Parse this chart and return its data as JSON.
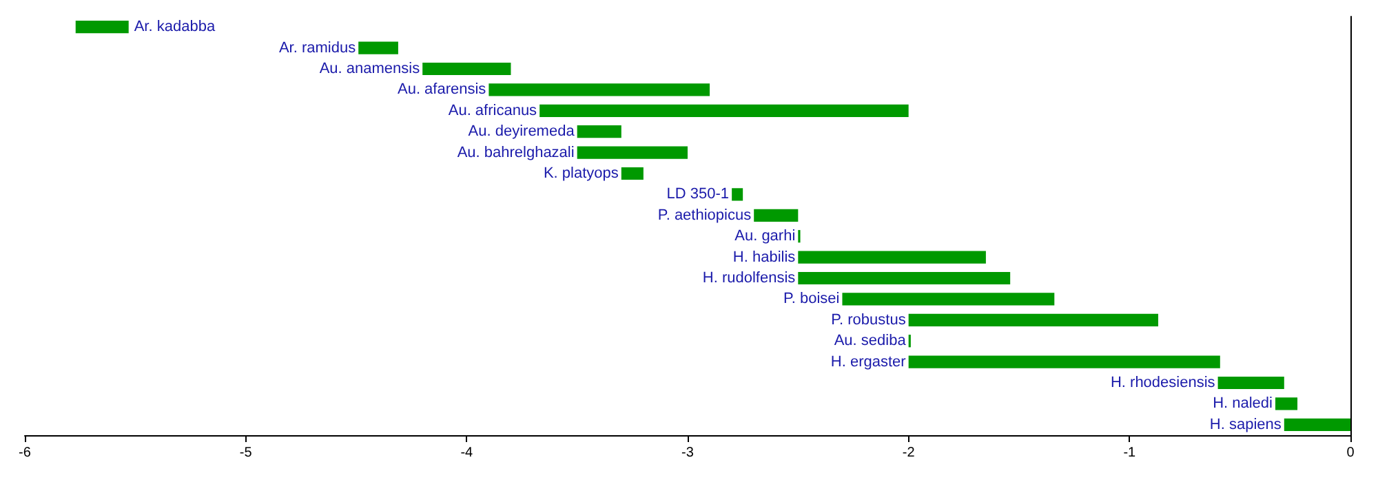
{
  "chart_data": {
    "type": "bar",
    "orientation": "horizontal",
    "categories": [
      "Ar. kadabba",
      "Ar. ramidus",
      "Au. anamensis",
      "Au. afarensis",
      "Au. africanus",
      "Au. deyiremeda",
      "Au. bahrelghazali",
      "K. platyops",
      "LD 350-1",
      "P. aethiopicus",
      "Au. garhi",
      "H. habilis",
      "H. rudolfensis",
      "P. boisei",
      "P. robustus",
      "Au. sediba",
      "H. ergaster",
      "H. rhodesiensis",
      "H. naledi",
      "H. sapiens"
    ],
    "base": [
      -5.77,
      -4.49,
      -4.2,
      -3.9,
      -3.67,
      -3.5,
      -3.5,
      -3.3,
      -2.8,
      -2.7,
      -2.5,
      -2.5,
      -2.5,
      -2.3,
      -2.0,
      -2.0,
      -2.0,
      -0.6,
      -0.34,
      -0.3
    ],
    "values": [
      0.24,
      0.18,
      0.4,
      1.0,
      1.67,
      0.2,
      0.5,
      0.1,
      0.05,
      0.2,
      0.01,
      0.85,
      0.96,
      0.96,
      1.13,
      0.01,
      1.41,
      0.3,
      0.1,
      0.3
    ],
    "color": "#009900",
    "xlim": [
      -6,
      0
    ],
    "xticks": [
      -6,
      -5,
      -4,
      -3,
      -2,
      -1,
      0
    ],
    "tick_labels": "x",
    "grid": false
  }
}
